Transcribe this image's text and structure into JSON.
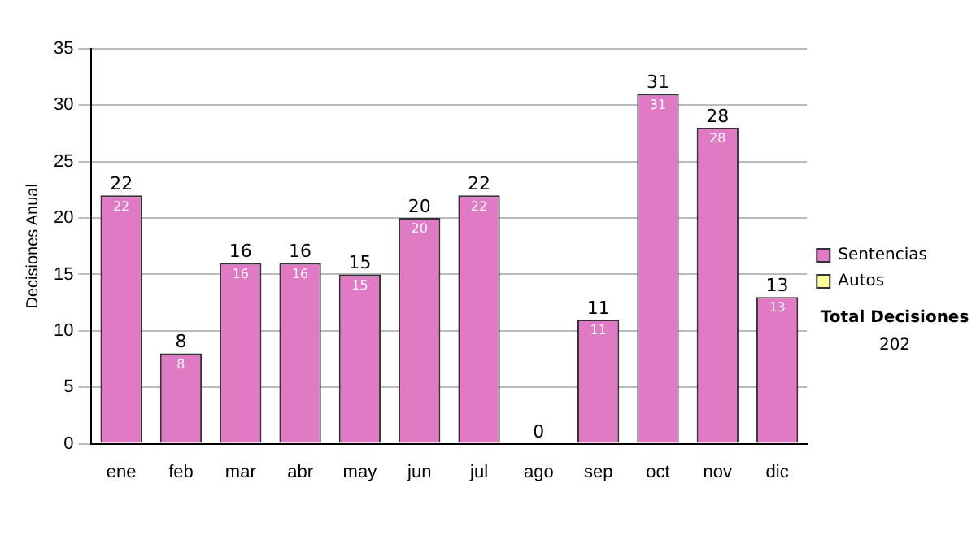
{
  "chart_data": {
    "type": "bar",
    "stacked": true,
    "ylabel": "Decisiones Anual",
    "categories": [
      "ene",
      "feb",
      "mar",
      "abr",
      "may",
      "jun",
      "jul",
      "ago",
      "sep",
      "oct",
      "nov",
      "dic"
    ],
    "series": [
      {
        "name": "Sentencias",
        "color": "#e07ac4",
        "values": [
          22,
          8,
          16,
          16,
          15,
          20,
          22,
          0,
          11,
          31,
          28,
          13
        ],
        "value_labels": [
          "22",
          "8",
          "16",
          "16",
          "15",
          "20",
          "22",
          null,
          "11",
          "31",
          "28",
          "13"
        ]
      },
      {
        "name": "Autos",
        "color": "#ffff99",
        "values": [
          0,
          0,
          0,
          0,
          0,
          0,
          0,
          0,
          0,
          0,
          0,
          0
        ]
      }
    ],
    "totals": [
      "22",
      "8",
      "16",
      "16",
      "15",
      "20",
      "22",
      "0",
      "11",
      "31",
      "28",
      "13"
    ],
    "ylim": [
      0,
      35
    ],
    "yticks": [
      0,
      5,
      10,
      15,
      20,
      25,
      30,
      35
    ],
    "grid": "y",
    "legend": "right",
    "annotations": [
      "Total Decisiones",
      "202"
    ]
  }
}
